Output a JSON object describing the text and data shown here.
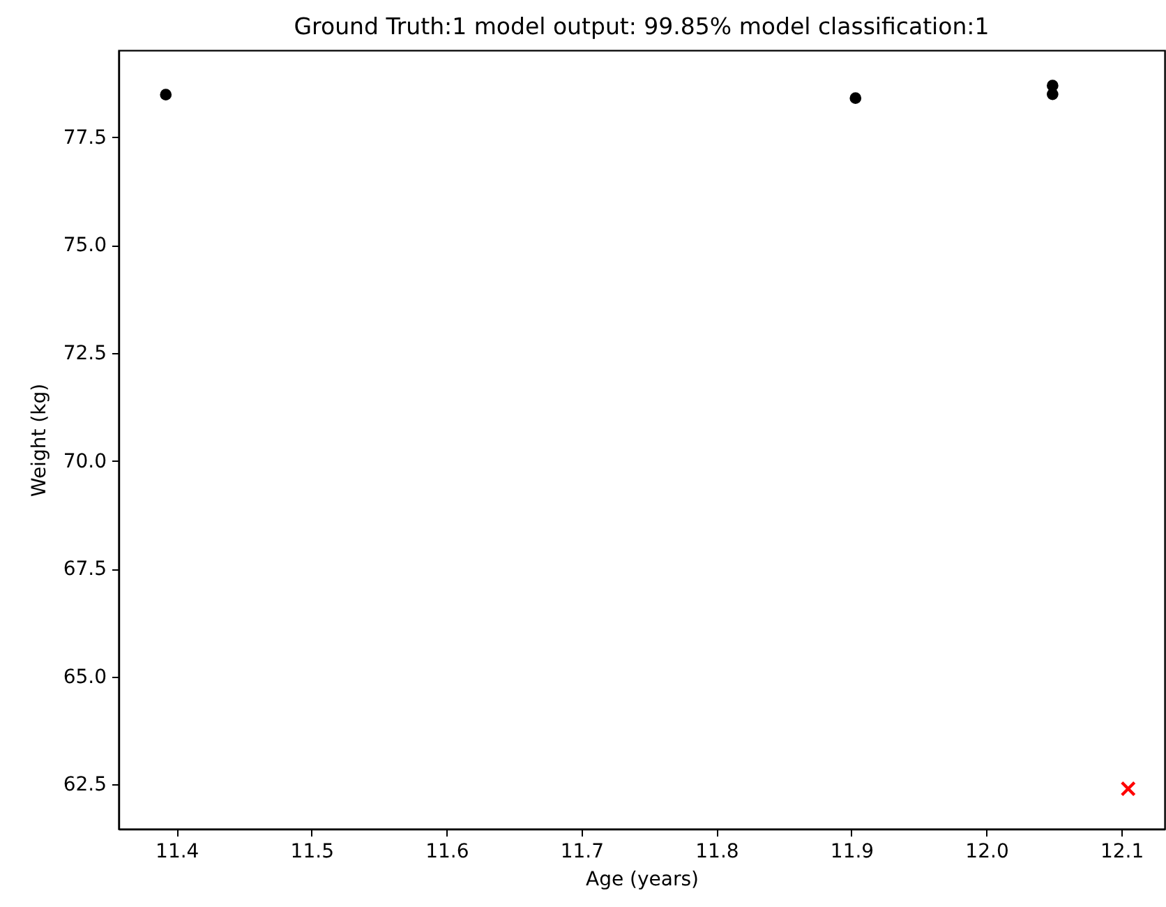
{
  "chart_data": {
    "type": "scatter",
    "title": "Ground Truth:1 model output: 99.85% model classification:1",
    "xlabel": "Age (years)",
    "ylabel": "Weight (kg)",
    "xlim": [
      11.357,
      12.132
    ],
    "xticks": [
      {
        "value": 11.4,
        "label": "11.4"
      },
      {
        "value": 11.5,
        "label": "11.5"
      },
      {
        "value": 11.6,
        "label": "11.6"
      },
      {
        "value": 11.7,
        "label": "11.7"
      },
      {
        "value": 11.8,
        "label": "11.8"
      },
      {
        "value": 11.9,
        "label": "11.9"
      },
      {
        "value": 12.0,
        "label": "12.0"
      },
      {
        "value": 12.1,
        "label": "12.1"
      }
    ],
    "ylim": [
      61.47,
      79.52
    ],
    "yticks": [
      {
        "value": 62.5,
        "label": "62.5"
      },
      {
        "value": 65.0,
        "label": "65.0"
      },
      {
        "value": 67.5,
        "label": "67.5"
      },
      {
        "value": 70.0,
        "label": "70.0"
      },
      {
        "value": 72.5,
        "label": "72.5"
      },
      {
        "value": 75.0,
        "label": "75.0"
      },
      {
        "value": 77.5,
        "label": "77.5"
      }
    ],
    "grid": false,
    "series": [
      {
        "color": "#000000",
        "marker": "circle",
        "x": [
          11.392,
          11.903,
          12.049,
          12.049
        ],
        "values": [
          78.49,
          78.41,
          78.7,
          78.5
        ]
      },
      {
        "color": "#ff0000",
        "marker": "cross",
        "x": [
          12.105
        ],
        "values": [
          62.4
        ]
      }
    ]
  }
}
